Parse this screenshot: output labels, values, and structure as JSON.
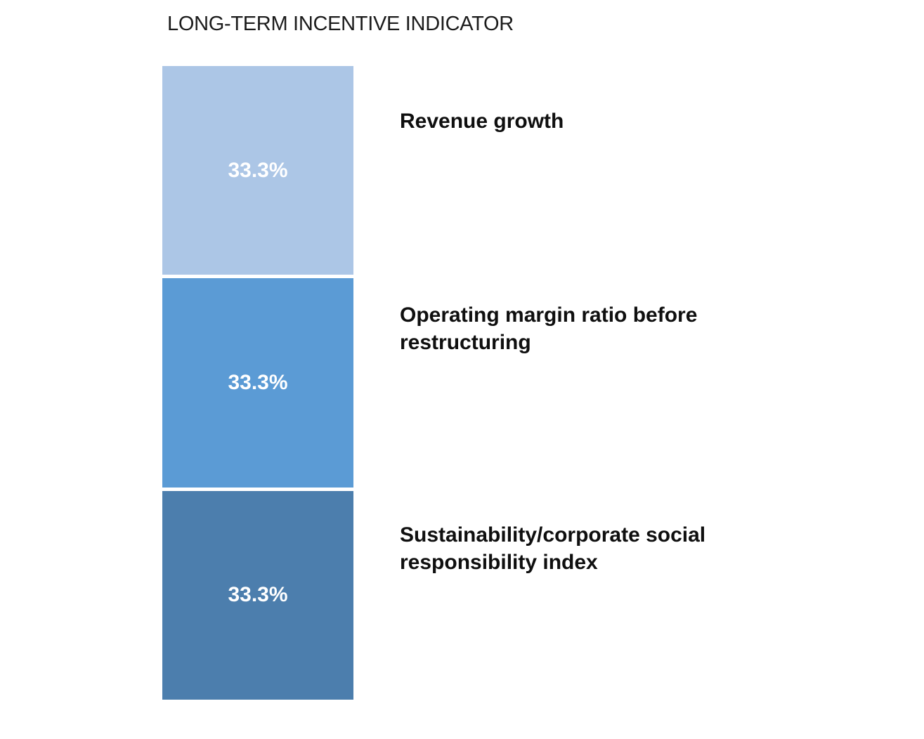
{
  "chart_data": {
    "type": "bar",
    "variant": "100-percent-stacked-column",
    "title": "LONG-TERM INCENTIVE INDICATOR",
    "grid": false,
    "axes_visible": false,
    "legend_position": "labels-right-of-bar",
    "unit": "%",
    "categories": [
      "Revenue growth",
      "Operating margin ratio before restructuring",
      "Sustainability/corporate social responsibility index"
    ],
    "values": [
      33.3,
      33.3,
      33.3
    ],
    "segments": [
      {
        "label": "Revenue growth",
        "label_lines": [
          "Revenue growth",
          ""
        ],
        "value": 33.3,
        "value_label": "33.3%",
        "color": "#ACC6E6",
        "value_text_color": "#FFFFFF"
      },
      {
        "label": "Operating margin ratio before restructuring",
        "label_lines": [
          "Operating margin ratio before",
          "restructuring"
        ],
        "value": 33.3,
        "value_label": "33.3%",
        "color": "#5B9BD5",
        "value_text_color": "#FFFFFF"
      },
      {
        "label": "Sustainability/corporate social responsibility index",
        "label_lines": [
          "Sustainability/corporate social",
          "responsibility index"
        ],
        "value": 33.3,
        "value_label": "33.3%",
        "color": "#4C7EAD",
        "value_text_color": "#FFFFFF"
      }
    ]
  }
}
